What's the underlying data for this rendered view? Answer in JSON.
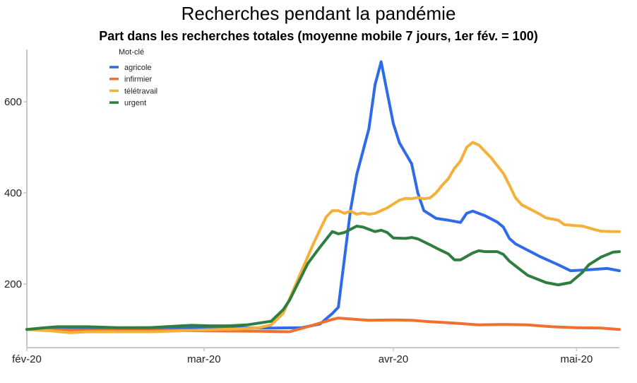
{
  "chart_data": {
    "type": "line",
    "title": "Recherches pendant la pandémie",
    "subtitle": "Part dans les recherches totales (moyenne mobile 7 jours, 1er fév. = 100)",
    "xlabel": "",
    "ylabel": "",
    "xlim": [
      "2020-02-01",
      "2020-05-08"
    ],
    "ylim": [
      60,
      715
    ],
    "grid": false,
    "x_ticks": [
      {
        "date": "2020-02-01",
        "label": "fév-20"
      },
      {
        "date": "2020-03-01",
        "label": "mar-20"
      },
      {
        "date": "2020-04-01",
        "label": "avr-20"
      },
      {
        "date": "2020-05-01",
        "label": "mai-20"
      }
    ],
    "y_ticks": [
      200,
      400,
      600
    ],
    "legend": {
      "title": "Mot-clé",
      "position": "top-left"
    },
    "series": [
      {
        "name": "agricole",
        "color": "#2f6be8",
        "points": [
          [
            "2020-02-01",
            100
          ],
          [
            "2020-02-11",
            103
          ],
          [
            "2020-02-21",
            104
          ],
          [
            "2020-03-02",
            104
          ],
          [
            "2020-03-12",
            103
          ],
          [
            "2020-03-17",
            104
          ],
          [
            "2020-03-20",
            112
          ],
          [
            "2020-03-22",
            135
          ],
          [
            "2020-03-23",
            149
          ],
          [
            "2020-03-25",
            363
          ],
          [
            "2020-03-26",
            440
          ],
          [
            "2020-03-28",
            541
          ],
          [
            "2020-03-29",
            637
          ],
          [
            "2020-03-30",
            688
          ],
          [
            "2020-04-01",
            552
          ],
          [
            "2020-04-02",
            510
          ],
          [
            "2020-04-04",
            464
          ],
          [
            "2020-04-05",
            400
          ],
          [
            "2020-04-06",
            361
          ],
          [
            "2020-04-08",
            344
          ],
          [
            "2020-04-10",
            340
          ],
          [
            "2020-04-12",
            335
          ],
          [
            "2020-04-13",
            355
          ],
          [
            "2020-04-14",
            360
          ],
          [
            "2020-04-16",
            350
          ],
          [
            "2020-04-18",
            336
          ],
          [
            "2020-04-19",
            325
          ],
          [
            "2020-04-20",
            300
          ],
          [
            "2020-04-21",
            288
          ],
          [
            "2020-04-25",
            260
          ],
          [
            "2020-04-28",
            242
          ],
          [
            "2020-04-30",
            229
          ],
          [
            "2020-05-03",
            231
          ],
          [
            "2020-05-06",
            234
          ],
          [
            "2020-05-08",
            229
          ]
        ]
      },
      {
        "name": "infirmier",
        "color": "#f07030",
        "points": [
          [
            "2020-02-01",
            100
          ],
          [
            "2020-02-06",
            99
          ],
          [
            "2020-02-11",
            98
          ],
          [
            "2020-02-21",
            98
          ],
          [
            "2020-03-02",
            97
          ],
          [
            "2020-03-10",
            96
          ],
          [
            "2020-03-15",
            95
          ],
          [
            "2020-03-19",
            110
          ],
          [
            "2020-03-22",
            122
          ],
          [
            "2020-03-23",
            125
          ],
          [
            "2020-03-25",
            123
          ],
          [
            "2020-03-28",
            120
          ],
          [
            "2020-04-01",
            121
          ],
          [
            "2020-04-04",
            120
          ],
          [
            "2020-04-07",
            117
          ],
          [
            "2020-04-11",
            114
          ],
          [
            "2020-04-15",
            110
          ],
          [
            "2020-04-19",
            111
          ],
          [
            "2020-04-23",
            110
          ],
          [
            "2020-04-27",
            106
          ],
          [
            "2020-05-01",
            104
          ],
          [
            "2020-05-05",
            103
          ],
          [
            "2020-05-08",
            100
          ]
        ]
      },
      {
        "name": "télétravail",
        "color": "#f5b03a",
        "points": [
          [
            "2020-02-01",
            100
          ],
          [
            "2020-02-05",
            97
          ],
          [
            "2020-02-08",
            93
          ],
          [
            "2020-02-11",
            95
          ],
          [
            "2020-02-16",
            95
          ],
          [
            "2020-02-21",
            95
          ],
          [
            "2020-02-26",
            97
          ],
          [
            "2020-03-01",
            99
          ],
          [
            "2020-03-06",
            101
          ],
          [
            "2020-03-10",
            104
          ],
          [
            "2020-03-12",
            110
          ],
          [
            "2020-03-14",
            136
          ],
          [
            "2020-03-17",
            229
          ],
          [
            "2020-03-19",
            291
          ],
          [
            "2020-03-21",
            347
          ],
          [
            "2020-03-22",
            361
          ],
          [
            "2020-03-23",
            361
          ],
          [
            "2020-03-24",
            355
          ],
          [
            "2020-03-25",
            360
          ],
          [
            "2020-03-26",
            353
          ],
          [
            "2020-03-27",
            356
          ],
          [
            "2020-03-28",
            353
          ],
          [
            "2020-03-29",
            355
          ],
          [
            "2020-03-31",
            367
          ],
          [
            "2020-04-02",
            384
          ],
          [
            "2020-04-03",
            388
          ],
          [
            "2020-04-04",
            387
          ],
          [
            "2020-04-05",
            390
          ],
          [
            "2020-04-06",
            387
          ],
          [
            "2020-04-07",
            389
          ],
          [
            "2020-04-08",
            400
          ],
          [
            "2020-04-09",
            417
          ],
          [
            "2020-04-10",
            431
          ],
          [
            "2020-04-11",
            454
          ],
          [
            "2020-04-12",
            470
          ],
          [
            "2020-04-13",
            500
          ],
          [
            "2020-04-14",
            511
          ],
          [
            "2020-04-15",
            505
          ],
          [
            "2020-04-17",
            477
          ],
          [
            "2020-04-19",
            443
          ],
          [
            "2020-04-20",
            417
          ],
          [
            "2020-04-21",
            389
          ],
          [
            "2020-04-22",
            374
          ],
          [
            "2020-04-25",
            353
          ],
          [
            "2020-04-26",
            345
          ],
          [
            "2020-04-28",
            340
          ],
          [
            "2020-04-29",
            330
          ],
          [
            "2020-05-02",
            327
          ],
          [
            "2020-05-04",
            319
          ],
          [
            "2020-05-05",
            316
          ],
          [
            "2020-05-07",
            315
          ],
          [
            "2020-05-08",
            315
          ]
        ]
      },
      {
        "name": "urgent",
        "color": "#2f7d3f",
        "points": [
          [
            "2020-02-01",
            100
          ],
          [
            "2020-02-04",
            104
          ],
          [
            "2020-02-06",
            106
          ],
          [
            "2020-02-11",
            106
          ],
          [
            "2020-02-16",
            104
          ],
          [
            "2020-02-21",
            104
          ],
          [
            "2020-02-25",
            107
          ],
          [
            "2020-02-28",
            109
          ],
          [
            "2020-03-02",
            108
          ],
          [
            "2020-03-05",
            108
          ],
          [
            "2020-03-08",
            110
          ],
          [
            "2020-03-10",
            114
          ],
          [
            "2020-03-12",
            118
          ],
          [
            "2020-03-14",
            144
          ],
          [
            "2020-03-15",
            164
          ],
          [
            "2020-03-18",
            245
          ],
          [
            "2020-03-20",
            281
          ],
          [
            "2020-03-22",
            315
          ],
          [
            "2020-03-23",
            310
          ],
          [
            "2020-03-24",
            313
          ],
          [
            "2020-03-26",
            327
          ],
          [
            "2020-03-27",
            325
          ],
          [
            "2020-03-29",
            315
          ],
          [
            "2020-03-30",
            318
          ],
          [
            "2020-03-31",
            313
          ],
          [
            "2020-04-01",
            301
          ],
          [
            "2020-04-03",
            300
          ],
          [
            "2020-04-04",
            302
          ],
          [
            "2020-04-05",
            299
          ],
          [
            "2020-04-07",
            286
          ],
          [
            "2020-04-08",
            279
          ],
          [
            "2020-04-10",
            266
          ],
          [
            "2020-04-11",
            253
          ],
          [
            "2020-04-12",
            253
          ],
          [
            "2020-04-14",
            268
          ],
          [
            "2020-04-15",
            273
          ],
          [
            "2020-04-16",
            271
          ],
          [
            "2020-04-18",
            271
          ],
          [
            "2020-04-19",
            265
          ],
          [
            "2020-04-20",
            250
          ],
          [
            "2020-04-22",
            229
          ],
          [
            "2020-04-23",
            219
          ],
          [
            "2020-04-26",
            203
          ],
          [
            "2020-04-28",
            198
          ],
          [
            "2020-04-30",
            203
          ],
          [
            "2020-05-02",
            226
          ],
          [
            "2020-05-03",
            242
          ],
          [
            "2020-05-05",
            259
          ],
          [
            "2020-05-07",
            270
          ],
          [
            "2020-05-08",
            271
          ]
        ]
      }
    ]
  }
}
